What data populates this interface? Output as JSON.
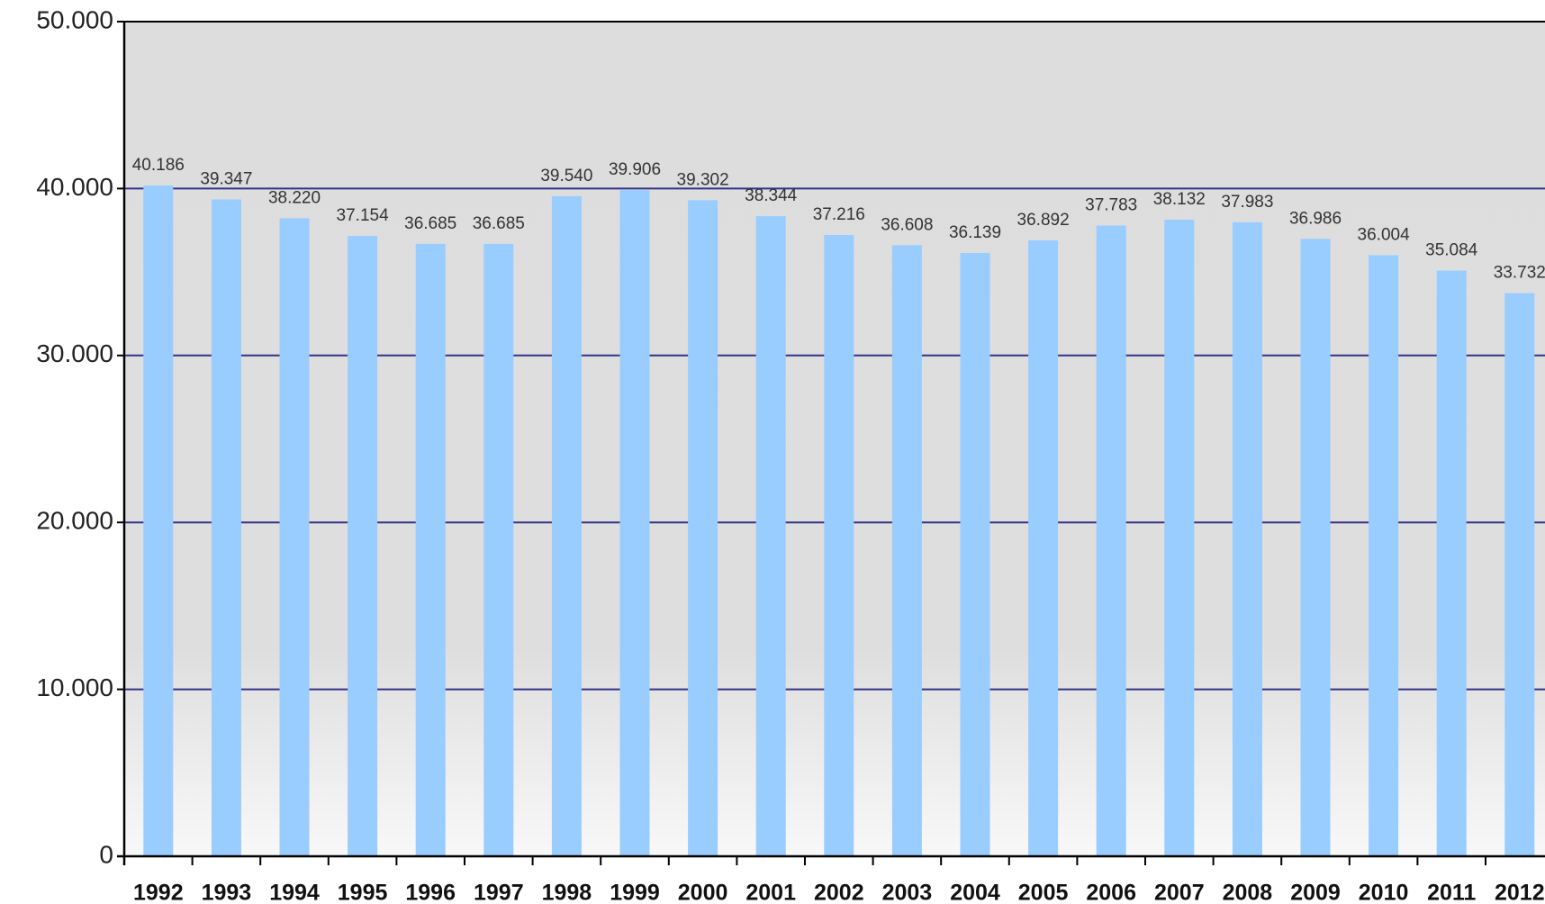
{
  "chart_data": {
    "type": "bar",
    "categories": [
      "1992",
      "1993",
      "1994",
      "1995",
      "1996",
      "1997",
      "1998",
      "1999",
      "2000",
      "2001",
      "2002",
      "2003",
      "2004",
      "2005",
      "2006",
      "2007",
      "2008",
      "2009",
      "2010",
      "2011",
      "2012"
    ],
    "values": [
      40186,
      39347,
      38220,
      37154,
      36685,
      36685,
      39540,
      39906,
      39302,
      38344,
      37216,
      36608,
      36139,
      36892,
      37783,
      38132,
      37983,
      36986,
      36004,
      35084,
      33732
    ],
    "value_labels": [
      "40.186",
      "39.347",
      "38.220",
      "37.154",
      "36.685",
      "36.685",
      "39.540",
      "39.906",
      "39.302",
      "38.344",
      "37.216",
      "36.608",
      "36.139",
      "36.892",
      "37.783",
      "38.132",
      "37.983",
      "36.986",
      "36.004",
      "35.084",
      "33.732"
    ],
    "color": "#99ccff",
    "ylim": [
      0,
      50000
    ],
    "yticks": [
      0,
      {
        "value": 10000,
        "label": "10.000"
      },
      {
        "value": 20000,
        "label": "20.000"
      },
      {
        "value": 30000,
        "label": "30.000"
      },
      {
        "value": 40000,
        "label": "40.000"
      },
      {
        "value": 50000,
        "label": "50.000"
      }
    ],
    "grid": true
  }
}
